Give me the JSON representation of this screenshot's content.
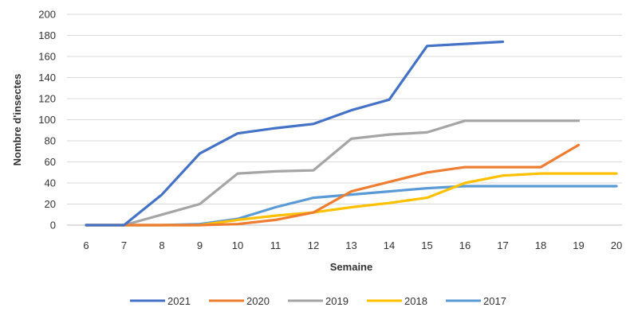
{
  "chart_data": {
    "type": "line",
    "title": "",
    "xlabel": "Semaine",
    "ylabel": "Nombre d'insectes",
    "x": [
      6,
      7,
      8,
      9,
      10,
      11,
      12,
      13,
      14,
      15,
      16,
      17,
      18,
      19,
      20
    ],
    "x_ticks": [
      "6",
      "7",
      "8",
      "9",
      "10",
      "11",
      "12",
      "13",
      "14",
      "15",
      "16",
      "17",
      "18",
      "19",
      "20"
    ],
    "y_ticks": [
      "0",
      "20",
      "40",
      "60",
      "80",
      "100",
      "120",
      "140",
      "160",
      "180",
      "200"
    ],
    "xlim": [
      6,
      20
    ],
    "ylim": [
      0,
      200
    ],
    "grid": true,
    "legend_position": "bottom",
    "series": [
      {
        "name": "2021",
        "color": "#4472C4",
        "x": [
          6,
          7,
          8,
          9,
          10,
          11,
          12,
          13,
          14,
          15,
          16,
          17
        ],
        "values": [
          0,
          0,
          29,
          68,
          87,
          92,
          96,
          109,
          119,
          170,
          172,
          174
        ]
      },
      {
        "name": "2020",
        "color": "#ED7D31",
        "x": [
          6,
          7,
          8,
          9,
          10,
          11,
          12,
          13,
          14,
          15,
          16,
          17,
          18,
          19
        ],
        "values": [
          0,
          0,
          0,
          0,
          1,
          5,
          12,
          32,
          41,
          50,
          55,
          55,
          55,
          76
        ]
      },
      {
        "name": "2019",
        "color": "#A5A5A5",
        "x": [
          6,
          7,
          8,
          9,
          10,
          11,
          12,
          13,
          14,
          15,
          16,
          17,
          18,
          19
        ],
        "values": [
          0,
          0,
          10,
          20,
          49,
          51,
          52,
          82,
          86,
          88,
          99,
          99,
          99,
          99
        ]
      },
      {
        "name": "2018",
        "color": "#FFC000",
        "x": [
          6,
          7,
          8,
          9,
          10,
          11,
          12,
          13,
          14,
          15,
          16,
          17,
          18,
          19,
          20
        ],
        "values": [
          0,
          0,
          0,
          0,
          5,
          9,
          12,
          17,
          21,
          26,
          40,
          47,
          49,
          49,
          49
        ]
      },
      {
        "name": "2017",
        "color": "#5B9BD5",
        "x": [
          6,
          7,
          8,
          9,
          10,
          11,
          12,
          13,
          14,
          15,
          16,
          17,
          18,
          19,
          20
        ],
        "values": [
          0,
          0,
          0,
          1,
          6,
          17,
          26,
          29,
          32,
          35,
          37,
          37,
          37,
          37,
          37
        ]
      }
    ]
  }
}
